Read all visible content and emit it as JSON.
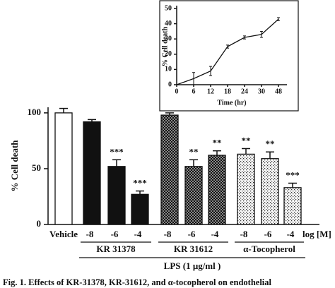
{
  "chart_data": [
    {
      "type": "bar",
      "ylabel": "% Cell death",
      "xlabel": "LPS (1 μg/ml )",
      "x_unit_label": "log [M]",
      "categories": [
        "Vehicle",
        "-8",
        "-6",
        "-4",
        "-8",
        "-6",
        "-4",
        "-8",
        "-6",
        "-4"
      ],
      "values": [
        100,
        92,
        52,
        27,
        98,
        52,
        62,
        63,
        59,
        33
      ],
      "errors": [
        4,
        2,
        6,
        3,
        2,
        6,
        4,
        5,
        6,
        4
      ],
      "annotations": [
        null,
        null,
        "***",
        "***",
        null,
        "**",
        "**",
        "**",
        "**",
        "***"
      ],
      "groups": [
        {
          "name": null,
          "size": 1,
          "fill": "white"
        },
        {
          "name": "KR 31378",
          "size": 3,
          "fill": "black"
        },
        {
          "name": "KR 31612",
          "size": 3,
          "fill": "checker"
        },
        {
          "name": "α-Tocopherol",
          "size": 3,
          "fill": "dots"
        }
      ],
      "ylim": [
        0,
        105
      ],
      "yticks": [
        0,
        50,
        100
      ]
    },
    {
      "type": "line",
      "ylabel": "% Cell death",
      "xlabel": "Time (hr)",
      "categories": [
        "0",
        "6",
        "12",
        "18",
        "24",
        "30",
        "48"
      ],
      "values": [
        0,
        4,
        9,
        25,
        31,
        33,
        43
      ],
      "errors": [
        0,
        4,
        3,
        1,
        1,
        2,
        1
      ],
      "ylim": [
        0,
        50
      ],
      "yticks": [
        0,
        10,
        20,
        30,
        40,
        50
      ]
    }
  ],
  "caption": "Fig. 1. Effects of KR-31378, KR-31612, and α-tocopherol on endothelial"
}
